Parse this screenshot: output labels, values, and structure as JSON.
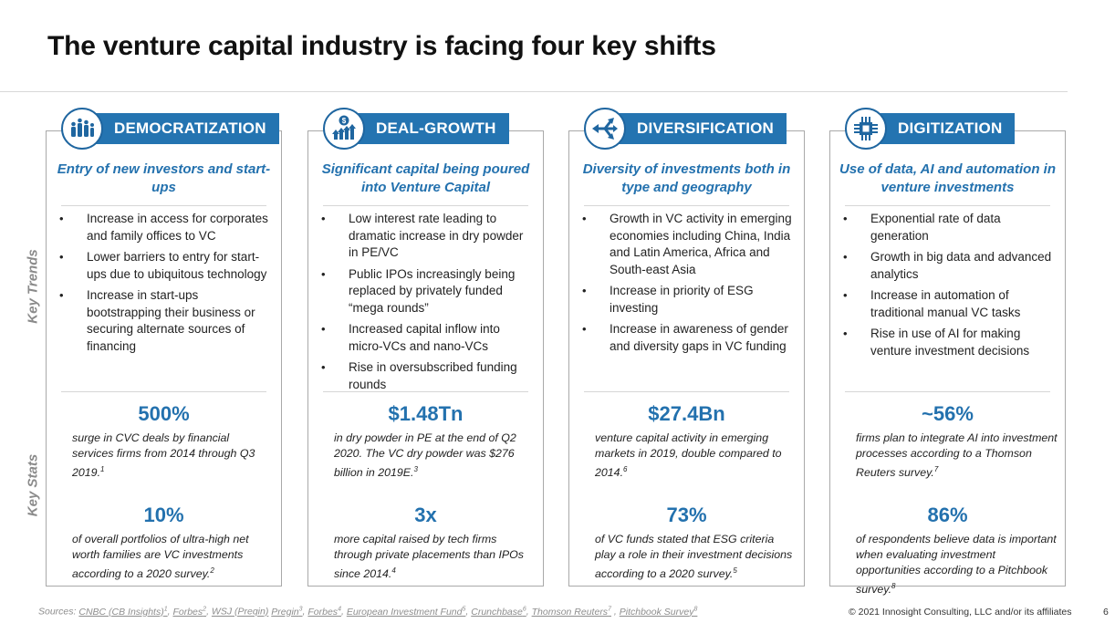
{
  "title": "The venture capital industry is facing four key shifts",
  "side_labels": {
    "trends": "Key Trends",
    "stats": "Key Stats"
  },
  "columns": [
    {
      "header": "DEMOCRATIZATION",
      "icon": "raised-hands-icon",
      "subtitle": "Entry of new investors and start-ups",
      "trends": [
        "Increase in access for corporates and family offices to VC",
        "Lower barriers to entry for start-ups due to ubiquitous technology",
        "Increase in start-ups bootstrapping their business or securing alternate sources of financing"
      ],
      "stats": [
        {
          "value": "500%",
          "desc": "surge in CVC deals by financial services firms from 2014 through Q3 2019.",
          "ref": "1"
        },
        {
          "value": "10%",
          "desc": "of overall portfolios of ultra-high net worth families are VC investments according to a 2020 survey.",
          "ref": "2"
        }
      ]
    },
    {
      "header": "DEAL-GROWTH",
      "icon": "dollar-growth-icon",
      "subtitle": "Significant capital being poured into Venture Capital",
      "trends": [
        "Low interest rate leading to dramatic increase in dry powder in PE/VC",
        "Public IPOs increasingly being replaced by privately funded “mega rounds”",
        "Increased capital inflow into micro-VCs and nano-VCs",
        "Rise in oversubscribed funding rounds"
      ],
      "stats": [
        {
          "value": "$1.48Tn",
          "desc": "in dry powder in PE at the end of Q2 2020. The VC dry powder was $276 billion in 2019E.",
          "ref": "3"
        },
        {
          "value": "3x",
          "desc": "more capital raised by tech firms through private placements than IPOs since 2014.",
          "ref": "4"
        }
      ]
    },
    {
      "header": "DIVERSIFICATION",
      "icon": "diverging-arrows-icon",
      "subtitle": "Diversity of investments both in type and geography",
      "trends": [
        "Growth in VC activity in emerging economies including China, India and Latin America, Africa and South-east Asia",
        "Increase in priority of ESG investing",
        "Increase in awareness of gender and diversity gaps in VC funding"
      ],
      "stats": [
        {
          "value": "$27.4Bn",
          "desc": "venture capital activity in emerging markets in 2019, double compared to 2014.",
          "ref": "6"
        },
        {
          "value": "73%",
          "desc": "of VC funds stated that ESG criteria play a role in their investment decisions according to a 2020 survey.",
          "ref": "5"
        }
      ]
    },
    {
      "header": "DIGITIZATION",
      "icon": "chip-icon",
      "subtitle": "Use of data, AI and automation in venture investments",
      "trends": [
        "Exponential rate of data generation",
        "Growth in big data and advanced analytics",
        "Increase in automation of traditional manual VC tasks",
        "Rise in use of AI for making venture investment decisions"
      ],
      "stats": [
        {
          "value": "~56%",
          "desc": "firms plan to integrate AI into investment processes according to a Thomson Reuters survey.",
          "ref": "7"
        },
        {
          "value": "86%",
          "desc": "of respondents believe data is important when evaluating investment opportunities according to a Pitchbook survey.",
          "ref": "8"
        }
      ]
    }
  ],
  "footer": {
    "sources_label": "Sources:",
    "sources": [
      {
        "text": "CNBC (CB Insights)",
        "ref": "1"
      },
      {
        "text": "Forbes",
        "ref": "2"
      },
      {
        "text": "WSJ (Preqin)",
        "ref": ""
      },
      {
        "text": "Pregin",
        "ref": "3"
      },
      {
        "text": "Forbes",
        "ref": "4"
      },
      {
        "text": "European Investment Fund",
        "ref": "5"
      },
      {
        "text": "Crunchbase",
        "ref": "6"
      },
      {
        "text": "Thomson Reuters",
        "ref": "7"
      },
      {
        "text": "Pitchbook Survey",
        "ref": "8"
      }
    ],
    "copyright": "© 2021 Innosight Consulting, LLC and/or its affiliates",
    "page_number": "6"
  },
  "colors": {
    "accent": "#2474b1",
    "accent_text": "#2371ae",
    "border": "#a9a9a9",
    "muted": "#8a8a8a"
  }
}
